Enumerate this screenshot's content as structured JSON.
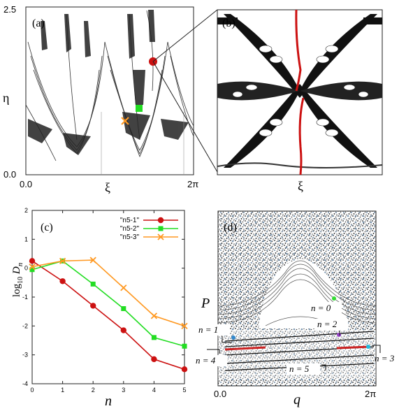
{
  "panel_a": {
    "label": "(a)",
    "ylabel": "η",
    "xlabel": "ξ",
    "y_ticks": [
      "2.5",
      "0.0"
    ],
    "x_ticks": [
      "0.0",
      "2π"
    ],
    "marker_colors": {
      "red": "#cc1111",
      "green": "#22dd22",
      "orange": "#ff9922"
    }
  },
  "panel_b": {
    "label": "(b)",
    "xlabel": "ξ",
    "curve_color": "#cc1111"
  },
  "panel_d": {
    "label": "(d)",
    "ylabel": "P",
    "xlabel": "q",
    "x_ticks": [
      "0.0",
      "2π"
    ],
    "orbit_labels": [
      "n = 0",
      "n = 1",
      "n = 2",
      "n = 3",
      "n = 4",
      "n = 5"
    ],
    "highlight_colors": {
      "red": "#cc2222",
      "green": "#33dd33",
      "violet": "#9944cc",
      "cyan": "#22bbdd",
      "blue": "#3388cc"
    }
  },
  "chart_data": [
    {
      "type": "line",
      "panel": "(c)",
      "xlabel": "n",
      "ylabel": "log10 Dn",
      "x": [
        0,
        1,
        2,
        3,
        4,
        5
      ],
      "xlim": [
        0,
        5
      ],
      "ylim": [
        -4,
        2
      ],
      "x_ticks": [
        "0",
        "1",
        "2",
        "3",
        "4",
        "5"
      ],
      "y_ticks": [
        "2",
        "1",
        "0",
        "-1",
        "-2",
        "-3",
        "-4"
      ],
      "legend_position": "top-right",
      "series": [
        {
          "name": "\"n5-1\"",
          "color": "#cc1111",
          "marker": "circle",
          "values": [
            0.25,
            -0.45,
            -1.3,
            -2.15,
            -3.15,
            -3.5
          ]
        },
        {
          "name": "\"n5-2\"",
          "color": "#22dd22",
          "marker": "square",
          "values": [
            -0.05,
            0.25,
            -0.55,
            -1.4,
            -2.4,
            -2.7
          ]
        },
        {
          "name": "\"n5-3\"",
          "color": "#ff9922",
          "marker": "cross",
          "values": [
            0.05,
            0.25,
            0.28,
            -0.68,
            -1.65,
            -2.0
          ]
        }
      ]
    }
  ]
}
